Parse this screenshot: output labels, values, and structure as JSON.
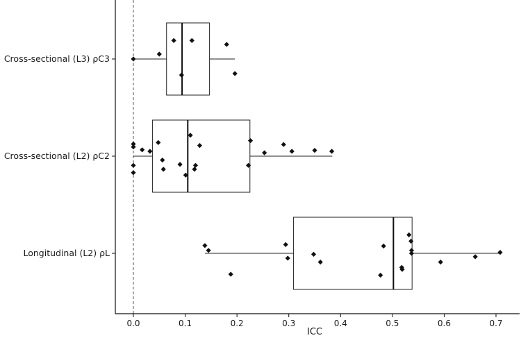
{
  "chart_data": {
    "type": "boxplot",
    "orientation": "horizontal",
    "xlabel": "ICC",
    "ylabel": "",
    "xlim": [
      -0.035,
      0.745
    ],
    "xticks": [
      0.0,
      0.1,
      0.2,
      0.3,
      0.4,
      0.5,
      0.6,
      0.7
    ],
    "xtick_labels": [
      "0.0",
      "0.1",
      "0.2",
      "0.3",
      "0.4",
      "0.5",
      "0.6",
      "0.7"
    ],
    "reference_line": {
      "x": 0,
      "style": "dashed"
    },
    "grid": false,
    "categories": [
      "Cross-sectional (L3) ρC3",
      "Cross-sectional (L2) ρC2",
      "Longitudinal (L2) ρL"
    ],
    "boxes": [
      {
        "category": "Cross-sectional (L3) ρC3",
        "whisker_low": 0.0,
        "q1": 0.064,
        "median": 0.094,
        "q3": 0.147,
        "whisker_high": 0.196,
        "points": [
          {
            "x": 0.0,
            "y_jitter": 0.0
          },
          {
            "x": 0.05,
            "y_jitter": 0.1
          },
          {
            "x": 0.078,
            "y_jitter": 0.38
          },
          {
            "x": 0.093,
            "y_jitter": -0.33
          },
          {
            "x": 0.113,
            "y_jitter": 0.38
          },
          {
            "x": 0.18,
            "y_jitter": 0.3
          },
          {
            "x": 0.196,
            "y_jitter": -0.3
          }
        ]
      },
      {
        "category": "Cross-sectional (L2) ρC2",
        "whisker_low": 0.0,
        "q1": 0.037,
        "median": 0.105,
        "q3": 0.225,
        "whisker_high": 0.384,
        "points": [
          {
            "x": 0.0,
            "y_jitter": 0.25
          },
          {
            "x": 0.0,
            "y_jitter": 0.19
          },
          {
            "x": 0.0,
            "y_jitter": -0.19
          },
          {
            "x": 0.0,
            "y_jitter": -0.34
          },
          {
            "x": 0.017,
            "y_jitter": 0.13
          },
          {
            "x": 0.032,
            "y_jitter": 0.1
          },
          {
            "x": 0.048,
            "y_jitter": 0.28
          },
          {
            "x": 0.056,
            "y_jitter": -0.08
          },
          {
            "x": 0.058,
            "y_jitter": -0.27
          },
          {
            "x": 0.09,
            "y_jitter": -0.17
          },
          {
            "x": 0.101,
            "y_jitter": -0.39
          },
          {
            "x": 0.11,
            "y_jitter": 0.43
          },
          {
            "x": 0.118,
            "y_jitter": -0.27
          },
          {
            "x": 0.12,
            "y_jitter": -0.19
          },
          {
            "x": 0.128,
            "y_jitter": 0.22
          },
          {
            "x": 0.222,
            "y_jitter": -0.19
          },
          {
            "x": 0.226,
            "y_jitter": 0.32
          },
          {
            "x": 0.253,
            "y_jitter": 0.07
          },
          {
            "x": 0.29,
            "y_jitter": 0.24
          },
          {
            "x": 0.306,
            "y_jitter": 0.1
          },
          {
            "x": 0.35,
            "y_jitter": 0.12
          },
          {
            "x": 0.383,
            "y_jitter": 0.1
          }
        ]
      },
      {
        "category": "Longitudinal (L2) ρL",
        "whisker_low": 0.138,
        "q1": 0.309,
        "median": 0.502,
        "q3": 0.538,
        "whisker_high": 0.708,
        "points": [
          {
            "x": 0.138,
            "y_jitter": 0.16
          },
          {
            "x": 0.145,
            "y_jitter": 0.06
          },
          {
            "x": 0.188,
            "y_jitter": -0.43
          },
          {
            "x": 0.294,
            "y_jitter": 0.18
          },
          {
            "x": 0.298,
            "y_jitter": -0.1
          },
          {
            "x": 0.348,
            "y_jitter": -0.02
          },
          {
            "x": 0.361,
            "y_jitter": -0.18
          },
          {
            "x": 0.477,
            "y_jitter": -0.45
          },
          {
            "x": 0.483,
            "y_jitter": 0.15
          },
          {
            "x": 0.518,
            "y_jitter": -0.29
          },
          {
            "x": 0.519,
            "y_jitter": -0.33
          },
          {
            "x": 0.532,
            "y_jitter": 0.38
          },
          {
            "x": 0.536,
            "y_jitter": 0.25
          },
          {
            "x": 0.537,
            "y_jitter": 0.06
          },
          {
            "x": 0.537,
            "y_jitter": 0.0
          },
          {
            "x": 0.593,
            "y_jitter": -0.18
          },
          {
            "x": 0.66,
            "y_jitter": -0.07
          },
          {
            "x": 0.708,
            "y_jitter": 0.02
          }
        ]
      }
    ]
  }
}
